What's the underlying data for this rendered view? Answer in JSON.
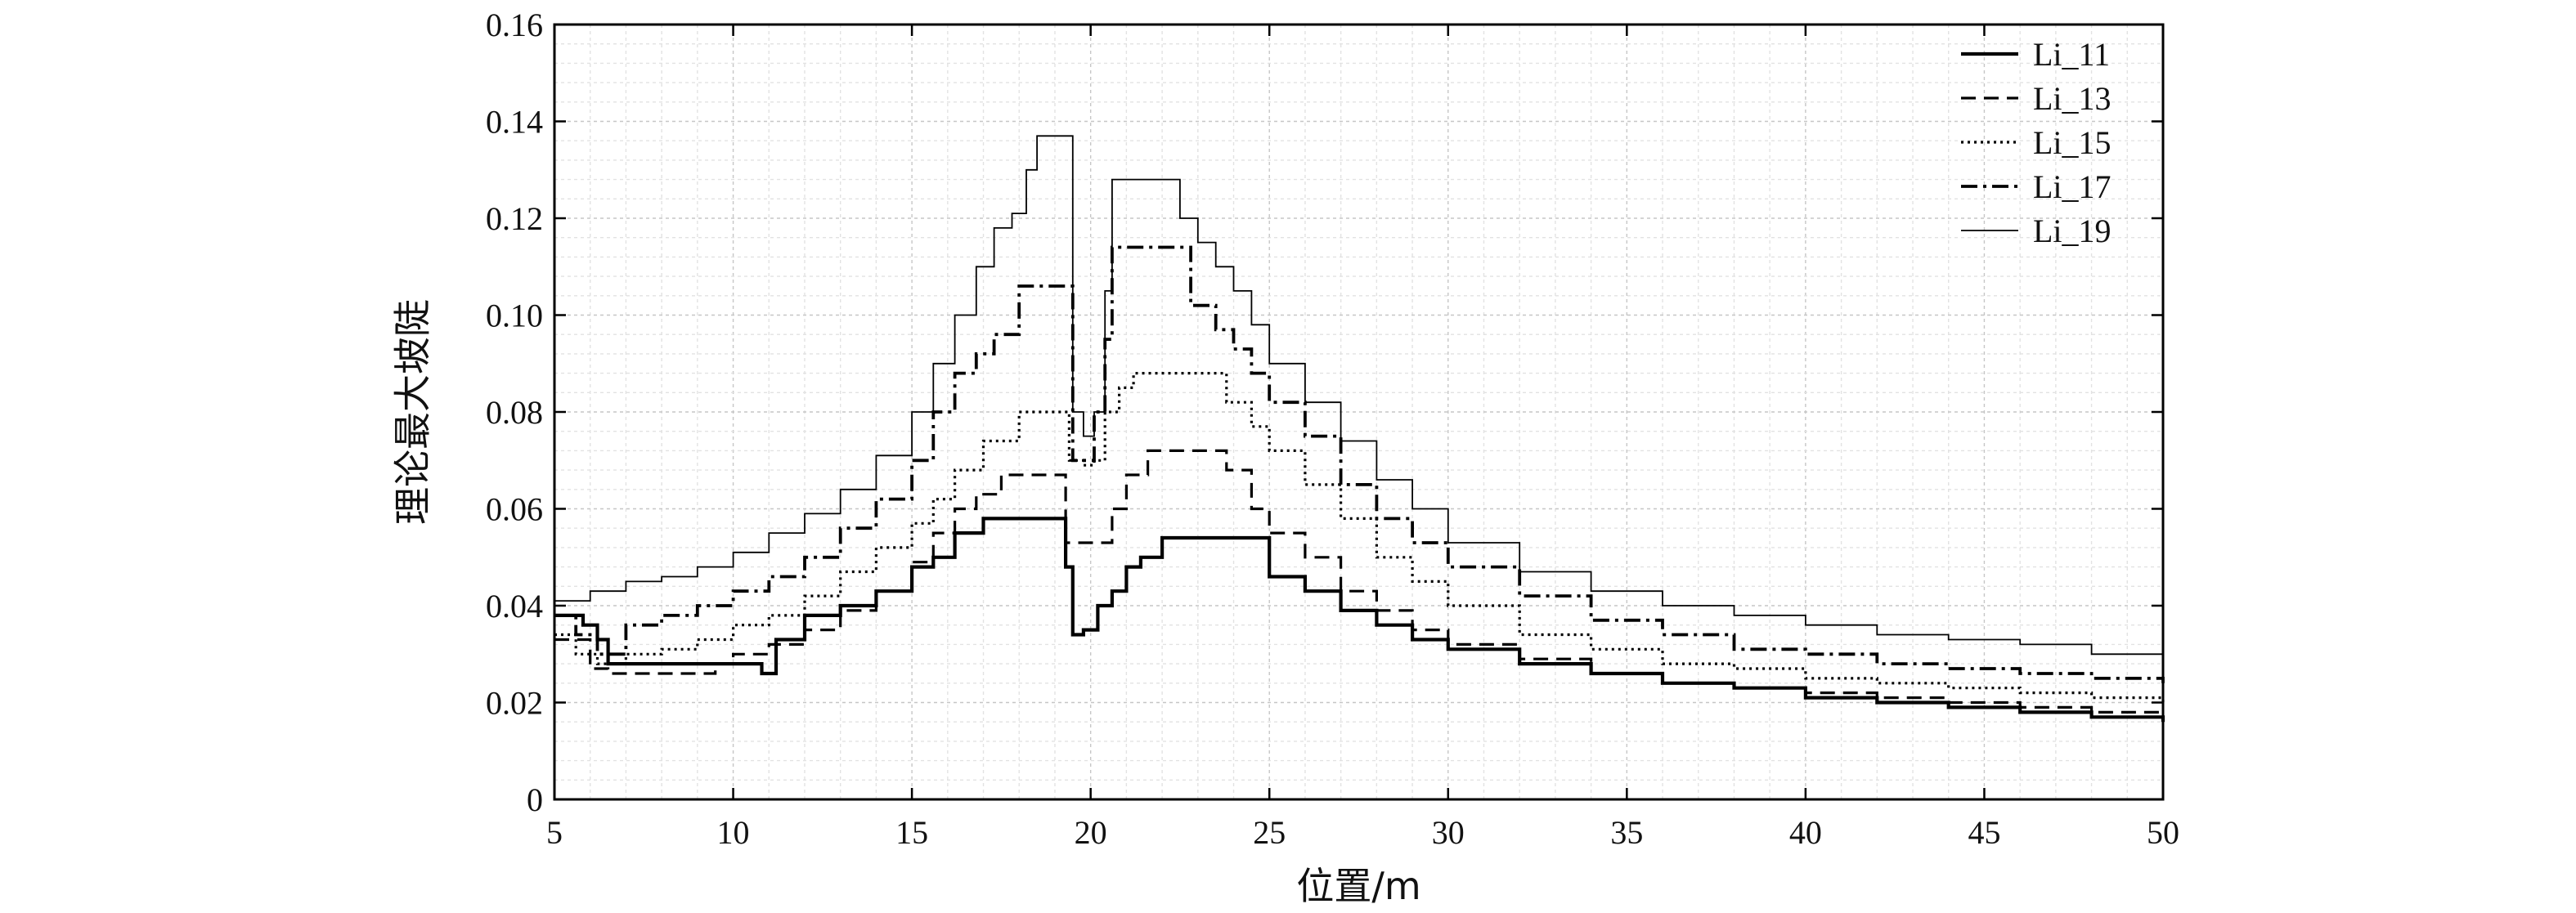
{
  "chart_data": {
    "type": "line",
    "title": "",
    "xlabel": "位置/m",
    "ylabel": "理论最大坡陡",
    "xlim": [
      5,
      50
    ],
    "ylim": [
      0,
      0.16
    ],
    "xticks": [
      5,
      10,
      15,
      20,
      25,
      30,
      35,
      40,
      45,
      50
    ],
    "xtick_labels": [
      "5",
      "10",
      "15",
      "20",
      "25",
      "30",
      "35",
      "40",
      "45",
      "50"
    ],
    "yticks": [
      0,
      0.02,
      0.04,
      0.06,
      0.08,
      0.1,
      0.12,
      0.14,
      0.16
    ],
    "ytick_labels": [
      "0",
      "0.02",
      "0.04",
      "0.06",
      "0.08",
      "0.10",
      "0.12",
      "0.14",
      "0.16"
    ],
    "grid": true,
    "legend_position": "top-right",
    "series": [
      {
        "name": "Li_11",
        "style": "solid-thick",
        "x": [
          5,
          5.8,
          6.2,
          6.5,
          10.5,
          10.8,
          11.2,
          12,
          13,
          14,
          15,
          15.6,
          16.2,
          17,
          18,
          18.8,
          19.3,
          19.5,
          19.8,
          20.2,
          20.6,
          21,
          21.4,
          22,
          23,
          24,
          25,
          26,
          27,
          28,
          29,
          30,
          32,
          34,
          36,
          38,
          40,
          42,
          44,
          46,
          48,
          50
        ],
        "y": [
          0.038,
          0.036,
          0.033,
          0.028,
          0.028,
          0.026,
          0.033,
          0.038,
          0.04,
          0.043,
          0.048,
          0.05,
          0.055,
          0.058,
          0.058,
          0.058,
          0.048,
          0.034,
          0.035,
          0.04,
          0.043,
          0.048,
          0.05,
          0.054,
          0.054,
          0.054,
          0.046,
          0.043,
          0.039,
          0.036,
          0.033,
          0.031,
          0.028,
          0.026,
          0.024,
          0.023,
          0.021,
          0.02,
          0.019,
          0.018,
          0.017,
          0.016
        ]
      },
      {
        "name": "Li_13",
        "style": "dashed",
        "x": [
          5,
          5.5,
          6,
          6.5,
          9,
          9.5,
          10,
          11,
          12,
          13,
          14,
          15,
          15.6,
          16.2,
          16.8,
          17.5,
          18.5,
          19,
          19.3,
          20,
          20.6,
          21,
          21.6,
          22,
          23,
          23.8,
          24.5,
          25,
          26,
          27,
          28,
          29,
          30,
          32,
          34,
          36,
          38,
          40,
          42,
          44,
          46,
          48,
          50
        ],
        "y": [
          0.033,
          0.033,
          0.027,
          0.026,
          0.026,
          0.028,
          0.03,
          0.032,
          0.035,
          0.039,
          0.043,
          0.049,
          0.055,
          0.06,
          0.063,
          0.067,
          0.067,
          0.067,
          0.053,
          0.053,
          0.06,
          0.067,
          0.072,
          0.072,
          0.072,
          0.068,
          0.06,
          0.055,
          0.05,
          0.043,
          0.039,
          0.035,
          0.032,
          0.029,
          0.026,
          0.024,
          0.023,
          0.022,
          0.021,
          0.02,
          0.019,
          0.018,
          0.017
        ]
      },
      {
        "name": "Li_15",
        "style": "dotted",
        "x": [
          5,
          5.6,
          6.2,
          7,
          8,
          9,
          10,
          11,
          12,
          13,
          14,
          15,
          15.6,
          16.2,
          17,
          18,
          18.8,
          19.2,
          19.4,
          19.8,
          20.1,
          20.4,
          20.8,
          21.2,
          22,
          23,
          23.8,
          24.5,
          25,
          26,
          27,
          28,
          29,
          30,
          32,
          34,
          36,
          38,
          40,
          42,
          44,
          46,
          48,
          50
        ],
        "y": [
          0.034,
          0.03,
          0.028,
          0.03,
          0.031,
          0.033,
          0.036,
          0.038,
          0.042,
          0.047,
          0.052,
          0.057,
          0.062,
          0.068,
          0.074,
          0.08,
          0.08,
          0.08,
          0.07,
          0.069,
          0.07,
          0.08,
          0.085,
          0.088,
          0.088,
          0.088,
          0.082,
          0.077,
          0.072,
          0.065,
          0.058,
          0.05,
          0.045,
          0.04,
          0.034,
          0.031,
          0.028,
          0.027,
          0.025,
          0.024,
          0.023,
          0.022,
          0.021,
          0.02
        ]
      },
      {
        "name": "Li_17",
        "style": "dash-dot",
        "x": [
          5,
          5.6,
          6.2,
          7,
          8,
          9,
          10,
          11,
          12,
          13,
          14,
          15,
          15.6,
          16.2,
          16.8,
          17.3,
          18,
          18.8,
          19.2,
          19.5,
          19.8,
          20.1,
          20.4,
          20.6,
          21.2,
          22,
          22.8,
          23.5,
          24,
          24.5,
          25,
          26,
          27,
          28,
          29,
          30,
          32,
          34,
          36,
          38,
          40,
          42,
          44,
          46,
          48,
          50
        ],
        "y": [
          0.038,
          0.034,
          0.03,
          0.036,
          0.038,
          0.04,
          0.043,
          0.046,
          0.05,
          0.056,
          0.062,
          0.07,
          0.08,
          0.088,
          0.092,
          0.096,
          0.106,
          0.106,
          0.106,
          0.07,
          0.07,
          0.08,
          0.095,
          0.114,
          0.114,
          0.114,
          0.102,
          0.097,
          0.093,
          0.088,
          0.082,
          0.075,
          0.065,
          0.058,
          0.053,
          0.048,
          0.042,
          0.037,
          0.034,
          0.031,
          0.03,
          0.028,
          0.027,
          0.026,
          0.025,
          0.024
        ]
      },
      {
        "name": "Li_19",
        "style": "thin",
        "x": [
          5,
          6,
          7,
          8,
          9,
          10,
          11,
          12,
          13,
          14,
          15,
          15.6,
          16.2,
          16.8,
          17.3,
          17.8,
          18.2,
          18.5,
          19.2,
          19.5,
          19.8,
          20.1,
          20.4,
          20.6,
          21,
          21.5,
          22,
          22.5,
          23,
          23.5,
          24,
          24.5,
          25,
          26,
          27,
          28,
          29,
          30,
          32,
          34,
          36,
          38,
          40,
          42,
          44,
          46,
          48,
          50
        ],
        "y": [
          0.041,
          0.043,
          0.045,
          0.046,
          0.048,
          0.051,
          0.055,
          0.059,
          0.064,
          0.071,
          0.08,
          0.09,
          0.1,
          0.11,
          0.118,
          0.121,
          0.13,
          0.137,
          0.137,
          0.08,
          0.075,
          0.08,
          0.105,
          0.128,
          0.128,
          0.128,
          0.128,
          0.12,
          0.115,
          0.11,
          0.105,
          0.098,
          0.09,
          0.082,
          0.074,
          0.066,
          0.06,
          0.053,
          0.047,
          0.043,
          0.04,
          0.038,
          0.036,
          0.034,
          0.033,
          0.032,
          0.03,
          0.029
        ]
      }
    ]
  }
}
